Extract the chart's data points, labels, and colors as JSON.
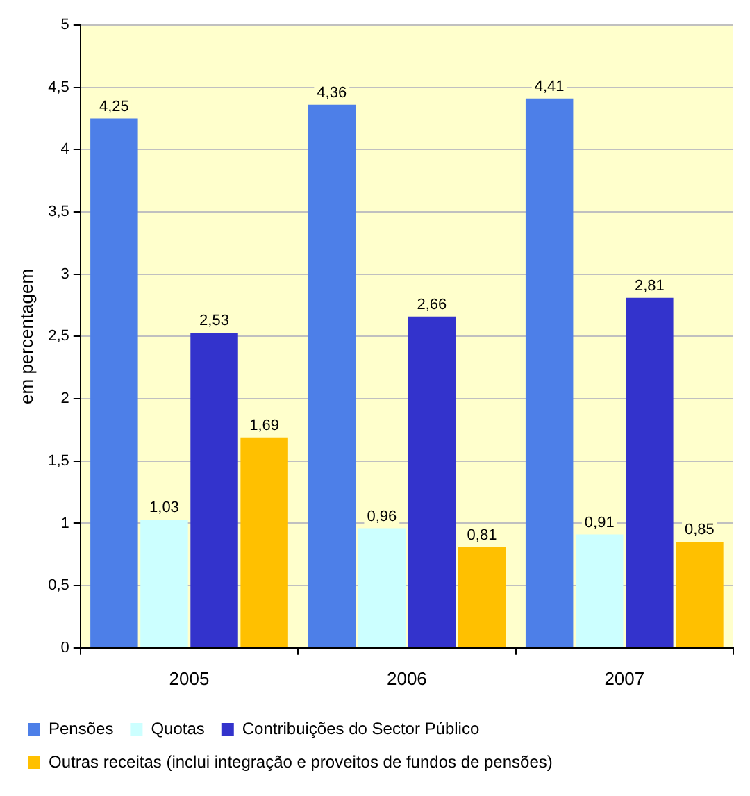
{
  "chart_data": {
    "type": "bar",
    "ylabel": "em percentagem",
    "categories": [
      "2005",
      "2006",
      "2007"
    ],
    "series": [
      {
        "name": "Pensões",
        "color": "#4d7fe8",
        "values": [
          4.25,
          4.36,
          4.41
        ],
        "value_labels": [
          "4,25",
          "4,36",
          "4,41"
        ]
      },
      {
        "name": "Quotas",
        "color": "#ccffff",
        "values": [
          1.03,
          0.96,
          0.91
        ],
        "value_labels": [
          "1,03",
          "0,96",
          "0,91"
        ]
      },
      {
        "name": "Contribuições do Sector Público",
        "color": "#3333cc",
        "values": [
          2.53,
          2.66,
          2.81
        ],
        "value_labels": [
          "2,53",
          "2,66",
          "2,81"
        ]
      },
      {
        "name": "Outras receitas (inclui integração e proveitos de fundos de pensões)",
        "color": "#ffc000",
        "values": [
          1.69,
          0.81,
          0.85
        ],
        "value_labels": [
          "1,69",
          "0,81",
          "0,85"
        ]
      }
    ],
    "ylim": [
      0,
      5
    ],
    "yticks": [
      0,
      {
        "value": 0.5,
        "label": "0,5"
      },
      1,
      {
        "value": 1.5,
        "label": "1,5"
      },
      2,
      {
        "value": 2.5,
        "label": "2,5"
      },
      3,
      {
        "value": 3.5,
        "label": "3,5"
      },
      4,
      {
        "value": 4.5,
        "label": "4,5"
      },
      5
    ],
    "grid": "y",
    "legend": "bottom"
  }
}
